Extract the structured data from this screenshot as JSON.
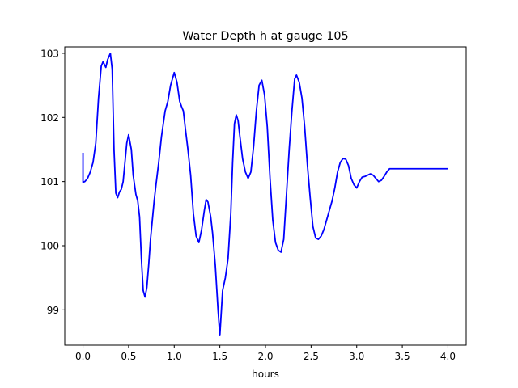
{
  "chart_data": {
    "type": "line",
    "title": "Water Depth h at gauge 105",
    "xlabel": "hours",
    "ylabel": "",
    "xlim": [
      -0.2,
      4.2
    ],
    "ylim": [
      98.45,
      103.1
    ],
    "x_ticks": [
      0.0,
      0.5,
      1.0,
      1.5,
      2.0,
      2.5,
      3.0,
      3.5,
      4.0
    ],
    "x_tick_labels": [
      "0.0",
      "0.5",
      "1.0",
      "1.5",
      "2.0",
      "2.5",
      "3.0",
      "3.5",
      "4.0"
    ],
    "y_ticks": [
      99,
      100,
      101,
      102,
      103
    ],
    "y_tick_labels": [
      "99",
      "100",
      "101",
      "102",
      "103"
    ],
    "grid": false,
    "series": [
      {
        "color": "#0000ff",
        "x": [
          0.0,
          0.0,
          0.02,
          0.05,
          0.08,
          0.11,
          0.14,
          0.17,
          0.2,
          0.22,
          0.25,
          0.27,
          0.3,
          0.32,
          0.34,
          0.36,
          0.38,
          0.4,
          0.42,
          0.44,
          0.46,
          0.48,
          0.5,
          0.53,
          0.55,
          0.58,
          0.6,
          0.62,
          0.64,
          0.66,
          0.68,
          0.7,
          0.72,
          0.74,
          0.76,
          0.78,
          0.8,
          0.83,
          0.86,
          0.9,
          0.93,
          0.96,
          1.0,
          1.03,
          1.06,
          1.08,
          1.1,
          1.12,
          1.15,
          1.18,
          1.21,
          1.24,
          1.27,
          1.3,
          1.33,
          1.35,
          1.37,
          1.4,
          1.42,
          1.45,
          1.48,
          1.5,
          1.53,
          1.56,
          1.59,
          1.62,
          1.64,
          1.66,
          1.68,
          1.7,
          1.72,
          1.75,
          1.78,
          1.81,
          1.84,
          1.87,
          1.9,
          1.93,
          1.96,
          1.99,
          2.02,
          2.05,
          2.08,
          2.11,
          2.14,
          2.17,
          2.2,
          2.23,
          2.26,
          2.29,
          2.32,
          2.34,
          2.37,
          2.4,
          2.43,
          2.46,
          2.49,
          2.52,
          2.55,
          2.58,
          2.61,
          2.64,
          2.67,
          2.7,
          2.73,
          2.76,
          2.79,
          2.82,
          2.85,
          2.88,
          2.91,
          2.94,
          2.97,
          3.0,
          3.03,
          3.06,
          3.09,
          3.12,
          3.15,
          3.18,
          3.21,
          3.24,
          3.27,
          3.3,
          3.33,
          3.36,
          3.39,
          3.42,
          3.45,
          3.48,
          3.51,
          3.54,
          3.57,
          3.6,
          3.63,
          3.66,
          3.69,
          3.72,
          3.75,
          3.78,
          3.81,
          3.84,
          3.87,
          3.9,
          3.93,
          3.96,
          4.0
        ],
        "y": [
          101.45,
          100.99,
          101.0,
          101.05,
          101.15,
          101.3,
          101.6,
          102.3,
          102.8,
          102.87,
          102.78,
          102.9,
          103.0,
          102.75,
          101.5,
          100.82,
          100.75,
          100.84,
          100.88,
          101.0,
          101.3,
          101.6,
          101.73,
          101.5,
          101.1,
          100.8,
          100.7,
          100.45,
          99.8,
          99.3,
          99.2,
          99.35,
          99.7,
          100.1,
          100.4,
          100.7,
          100.95,
          101.3,
          101.7,
          102.1,
          102.25,
          102.5,
          102.7,
          102.55,
          102.25,
          102.17,
          102.1,
          101.85,
          101.5,
          101.1,
          100.5,
          100.15,
          100.05,
          100.25,
          100.55,
          100.72,
          100.68,
          100.45,
          100.2,
          99.7,
          99.0,
          98.6,
          99.3,
          99.5,
          99.8,
          100.5,
          101.3,
          101.9,
          102.04,
          101.95,
          101.7,
          101.35,
          101.15,
          101.05,
          101.15,
          101.55,
          102.1,
          102.5,
          102.58,
          102.35,
          101.85,
          101.05,
          100.4,
          100.05,
          99.93,
          99.9,
          100.1,
          100.8,
          101.5,
          102.1,
          102.6,
          102.66,
          102.55,
          102.3,
          101.85,
          101.25,
          100.75,
          100.3,
          100.12,
          100.1,
          100.15,
          100.25,
          100.4,
          100.55,
          100.7,
          100.9,
          101.15,
          101.3,
          101.36,
          101.35,
          101.25,
          101.05,
          100.95,
          100.9,
          101.0,
          101.07,
          101.08,
          101.1,
          101.12,
          101.1,
          101.05,
          101.0,
          101.02,
          101.08,
          101.15,
          101.2,
          101.2,
          101.2,
          101.2,
          101.2,
          101.2,
          101.2,
          101.2,
          101.2,
          101.2,
          101.2,
          101.2,
          101.2,
          101.2,
          101.2,
          101.2,
          101.2,
          101.2,
          101.2,
          101.2,
          101.2,
          101.2
        ]
      }
    ]
  }
}
